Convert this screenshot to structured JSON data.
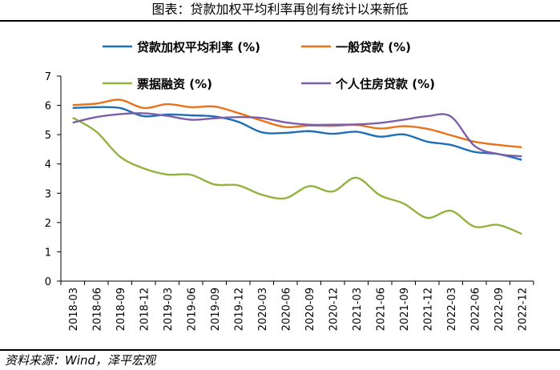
{
  "figure_title": "图表：贷款加权平均利率再创有统计以来新低",
  "source": "资料来源：Wind，泽平宏观",
  "chart_data": {
    "type": "line",
    "x": [
      "2018-03",
      "2018-06",
      "2018-09",
      "2018-12",
      "2019-03",
      "2019-06",
      "2019-09",
      "2019-12",
      "2020-03",
      "2020-06",
      "2020-09",
      "2020-12",
      "2021-03",
      "2021-06",
      "2021-09",
      "2021-12",
      "2022-03",
      "2022-06",
      "2022-09",
      "2022-12"
    ],
    "ylim": [
      0,
      7
    ],
    "yticks": [
      0,
      1,
      2,
      3,
      4,
      5,
      6,
      7
    ],
    "grid": false,
    "legend_placement": "top",
    "series": [
      {
        "name": "贷款加权平均利率 (%)",
        "color": "#1f6fb8",
        "values": [
          5.91,
          5.94,
          5.91,
          5.63,
          5.69,
          5.66,
          5.62,
          5.44,
          5.08,
          5.06,
          5.12,
          5.03,
          5.1,
          4.93,
          5.01,
          4.76,
          4.65,
          4.41,
          4.34,
          4.14
        ]
      },
      {
        "name": "一般贷款 (%)",
        "color": "#e8731e",
        "values": [
          6.01,
          6.06,
          6.19,
          5.91,
          6.04,
          5.94,
          5.96,
          5.74,
          5.48,
          5.26,
          5.31,
          5.3,
          5.33,
          5.21,
          5.29,
          5.2,
          4.98,
          4.76,
          4.65,
          4.57
        ]
      },
      {
        "name": "票据融资 (%)",
        "color": "#93b341",
        "values": [
          5.58,
          5.1,
          4.25,
          3.85,
          3.64,
          3.63,
          3.3,
          3.27,
          2.95,
          2.83,
          3.24,
          3.06,
          3.53,
          2.93,
          2.65,
          2.16,
          2.4,
          1.86,
          1.92,
          1.61
        ]
      },
      {
        "name": "个人住房贷款 (%)",
        "color": "#7d5fa8",
        "values": [
          5.41,
          5.6,
          5.7,
          5.73,
          5.64,
          5.51,
          5.56,
          5.6,
          5.57,
          5.42,
          5.34,
          5.34,
          5.35,
          5.4,
          5.51,
          5.63,
          5.62,
          4.62,
          4.34,
          4.26
        ]
      }
    ]
  }
}
